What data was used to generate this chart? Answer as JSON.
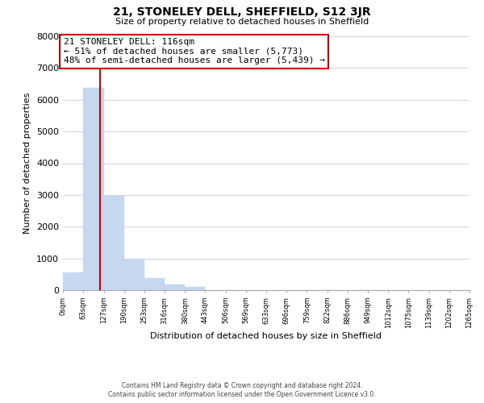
{
  "title": "21, STONELEY DELL, SHEFFIELD, S12 3JR",
  "subtitle": "Size of property relative to detached houses in Sheffield",
  "xlabel": "Distribution of detached houses by size in Sheffield",
  "ylabel": "Number of detached properties",
  "bar_edges": [
    0,
    63,
    127,
    190,
    253,
    316,
    380,
    443,
    506,
    569,
    633,
    696,
    759,
    822,
    886,
    949,
    1012,
    1075,
    1139,
    1202,
    1265
  ],
  "bar_heights": [
    560,
    6380,
    2970,
    960,
    380,
    175,
    90,
    0,
    0,
    0,
    0,
    0,
    0,
    0,
    0,
    0,
    0,
    0,
    0,
    0
  ],
  "bar_color": "#c5d8f0",
  "property_line_x": 116,
  "property_line_color": "#cc0000",
  "annotation_line1": "21 STONELEY DELL: 116sqm",
  "annotation_line2": "← 51% of detached houses are smaller (5,773)",
  "annotation_line3": "48% of semi-detached houses are larger (5,439) →",
  "annotation_box_color": "#ffffff",
  "annotation_box_edge": "#cc0000",
  "tick_labels": [
    "0sqm",
    "63sqm",
    "127sqm",
    "190sqm",
    "253sqm",
    "316sqm",
    "380sqm",
    "443sqm",
    "506sqm",
    "569sqm",
    "633sqm",
    "696sqm",
    "759sqm",
    "822sqm",
    "886sqm",
    "949sqm",
    "1012sqm",
    "1075sqm",
    "1139sqm",
    "1202sqm",
    "1265sqm"
  ],
  "ylim": [
    0,
    8000
  ],
  "yticks": [
    0,
    1000,
    2000,
    3000,
    4000,
    5000,
    6000,
    7000,
    8000
  ],
  "footer_line1": "Contains HM Land Registry data © Crown copyright and database right 2024.",
  "footer_line2": "Contains public sector information licensed under the Open Government Licence v3.0.",
  "background_color": "#ffffff",
  "grid_color": "#d0d8e8"
}
